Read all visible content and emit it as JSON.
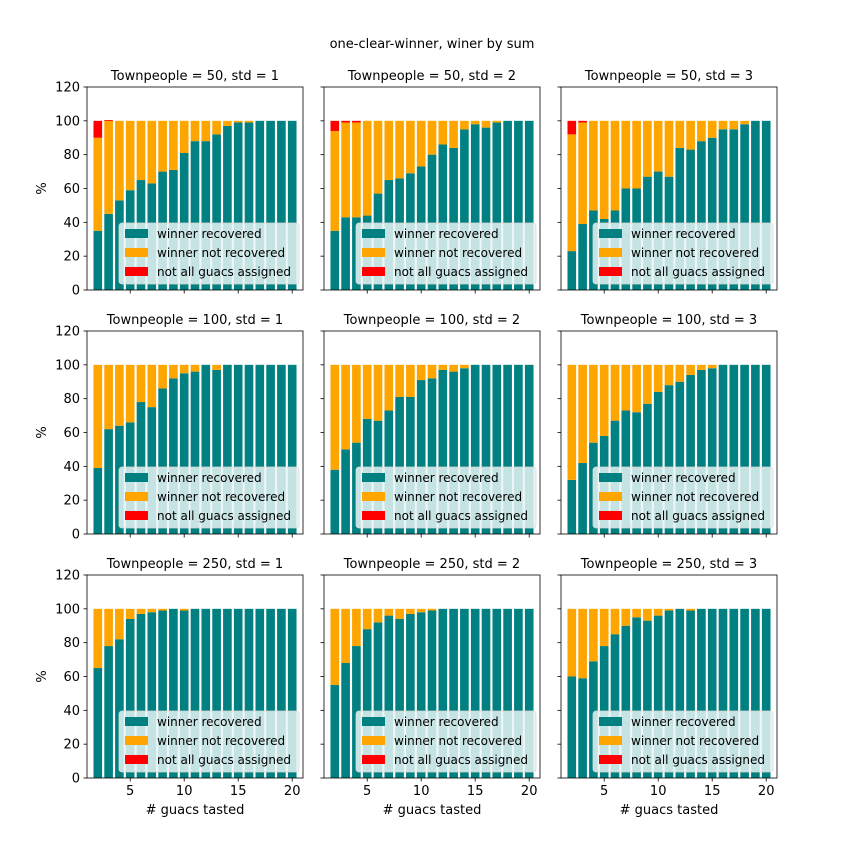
{
  "suptitle": "one-clear-winner, winer by sum",
  "colors": {
    "recovered": "#008080",
    "not_recovered": "#ffa500",
    "unassigned": "#ff0000",
    "legend_bg": "#e8f4f4"
  },
  "legend_labels": [
    "winner recovered",
    "winner not recovered",
    "not all guacs assigned"
  ],
  "chart_data": [
    {
      "type": "bar",
      "stacked": true,
      "title": "Townpeople = 50, std = 1",
      "xlabel": "",
      "ylabel": "%",
      "ylim": [
        0,
        120
      ],
      "xlim": [
        1,
        21
      ],
      "x": [
        2,
        3,
        4,
        5,
        6,
        7,
        8,
        9,
        10,
        11,
        12,
        13,
        14,
        15,
        16,
        17,
        18,
        19,
        20
      ],
      "series": [
        {
          "name": "winner recovered",
          "values": [
            35,
            45,
            53,
            59,
            65,
            63,
            70,
            71,
            81,
            88,
            88,
            92,
            97,
            99,
            99,
            100,
            100,
            100,
            100
          ]
        },
        {
          "name": "winner not recovered",
          "values": [
            55,
            55,
            47,
            41,
            35,
            37,
            30,
            29,
            19,
            12,
            12,
            8,
            3,
            1,
            1,
            0,
            0,
            0,
            0
          ]
        },
        {
          "name": "not all guacs assigned",
          "values": [
            10,
            0.5,
            0,
            0,
            0,
            0,
            0,
            0,
            0,
            0,
            0,
            0,
            0,
            0,
            0,
            0,
            0,
            0,
            0
          ]
        }
      ]
    },
    {
      "type": "bar",
      "stacked": true,
      "title": "Townpeople = 50, std = 2",
      "xlabel": "",
      "ylabel": "",
      "ylim": [
        0,
        120
      ],
      "xlim": [
        1,
        21
      ],
      "x": [
        2,
        3,
        4,
        5,
        6,
        7,
        8,
        9,
        10,
        11,
        12,
        13,
        14,
        15,
        16,
        17,
        18,
        19,
        20
      ],
      "series": [
        {
          "name": "winner recovered",
          "values": [
            35,
            43,
            43,
            44,
            57,
            65,
            66,
            69,
            73,
            80,
            86,
            84,
            95,
            98,
            96,
            99,
            100,
            100,
            100
          ]
        },
        {
          "name": "winner not recovered",
          "values": [
            59,
            56,
            56,
            56,
            43,
            35,
            34,
            31,
            27,
            20,
            14,
            16,
            5,
            2,
            4,
            1,
            0,
            0,
            0
          ]
        },
        {
          "name": "not all guacs assigned",
          "values": [
            6,
            1,
            1,
            0,
            0,
            0,
            0,
            0,
            0,
            0,
            0,
            0,
            0,
            0,
            0,
            0,
            0,
            0,
            0
          ]
        }
      ]
    },
    {
      "type": "bar",
      "stacked": true,
      "title": "Townpeople = 50, std = 3",
      "xlabel": "",
      "ylabel": "",
      "ylim": [
        0,
        120
      ],
      "xlim": [
        1,
        21
      ],
      "x": [
        2,
        3,
        4,
        5,
        6,
        7,
        8,
        9,
        10,
        11,
        12,
        13,
        14,
        15,
        16,
        17,
        18,
        19,
        20
      ],
      "series": [
        {
          "name": "winner recovered",
          "values": [
            23,
            39,
            47,
            42,
            47,
            60,
            60,
            67,
            70,
            67,
            84,
            83,
            88,
            90,
            95,
            95,
            98,
            100,
            100
          ]
        },
        {
          "name": "winner not recovered",
          "values": [
            69,
            60,
            53,
            58,
            53,
            40,
            40,
            33,
            30,
            33,
            16,
            17,
            12,
            10,
            5,
            5,
            2,
            0,
            0
          ]
        },
        {
          "name": "not all guacs assigned",
          "values": [
            8,
            1,
            0,
            0,
            0,
            0,
            0,
            0,
            0,
            0,
            0,
            0,
            0,
            0,
            0,
            0,
            0,
            0,
            0
          ]
        }
      ]
    },
    {
      "type": "bar",
      "stacked": true,
      "title": "Townpeople = 100, std = 1",
      "xlabel": "",
      "ylabel": "%",
      "ylim": [
        0,
        120
      ],
      "xlim": [
        1,
        21
      ],
      "x": [
        2,
        3,
        4,
        5,
        6,
        7,
        8,
        9,
        10,
        11,
        12,
        13,
        14,
        15,
        16,
        17,
        18,
        19,
        20
      ],
      "series": [
        {
          "name": "winner recovered",
          "values": [
            39,
            62,
            64,
            66,
            78,
            75,
            86,
            92,
            95,
            96,
            100,
            97,
            100,
            100,
            100,
            100,
            100,
            100,
            100
          ]
        },
        {
          "name": "winner not recovered",
          "values": [
            61,
            38,
            36,
            34,
            22,
            25,
            14,
            8,
            5,
            4,
            0,
            3,
            0,
            0,
            0,
            0,
            0,
            0,
            0
          ]
        },
        {
          "name": "not all guacs assigned",
          "values": [
            0,
            0,
            0,
            0,
            0,
            0,
            0,
            0,
            0,
            0,
            0,
            0,
            0,
            0,
            0,
            0,
            0,
            0,
            0
          ]
        }
      ]
    },
    {
      "type": "bar",
      "stacked": true,
      "title": "Townpeople = 100, std = 2",
      "xlabel": "",
      "ylabel": "",
      "ylim": [
        0,
        120
      ],
      "xlim": [
        1,
        21
      ],
      "x": [
        2,
        3,
        4,
        5,
        6,
        7,
        8,
        9,
        10,
        11,
        12,
        13,
        14,
        15,
        16,
        17,
        18,
        19,
        20
      ],
      "series": [
        {
          "name": "winner recovered",
          "values": [
            38,
            50,
            54,
            68,
            67,
            73,
            81,
            81,
            91,
            92,
            97,
            96,
            98,
            100,
            100,
            100,
            100,
            100,
            100
          ]
        },
        {
          "name": "winner not recovered",
          "values": [
            62,
            50,
            46,
            32,
            33,
            27,
            19,
            19,
            9,
            8,
            3,
            4,
            2,
            0,
            0,
            0,
            0,
            0,
            0
          ]
        },
        {
          "name": "not all guacs assigned",
          "values": [
            0,
            0,
            0,
            0,
            0,
            0,
            0,
            0,
            0,
            0,
            0,
            0,
            0,
            0,
            0,
            0,
            0,
            0,
            0
          ]
        }
      ]
    },
    {
      "type": "bar",
      "stacked": true,
      "title": "Townpeople = 100, std = 3",
      "xlabel": "",
      "ylabel": "",
      "ylim": [
        0,
        120
      ],
      "xlim": [
        1,
        21
      ],
      "x": [
        2,
        3,
        4,
        5,
        6,
        7,
        8,
        9,
        10,
        11,
        12,
        13,
        14,
        15,
        16,
        17,
        18,
        19,
        20
      ],
      "series": [
        {
          "name": "winner recovered",
          "values": [
            32,
            42,
            54,
            58,
            67,
            73,
            72,
            77,
            84,
            88,
            90,
            94,
            97,
            98,
            100,
            100,
            100,
            100,
            100
          ]
        },
        {
          "name": "winner not recovered",
          "values": [
            68,
            58,
            46,
            42,
            33,
            27,
            28,
            23,
            16,
            12,
            10,
            6,
            3,
            2,
            0,
            0,
            0,
            0,
            0
          ]
        },
        {
          "name": "not all guacs assigned",
          "values": [
            0,
            0,
            0,
            0,
            0,
            0,
            0,
            0,
            0,
            0,
            0,
            0,
            0,
            0,
            0,
            0,
            0,
            0,
            0
          ]
        }
      ]
    },
    {
      "type": "bar",
      "stacked": true,
      "title": "Townpeople = 250, std = 1",
      "xlabel": "# guacs tasted",
      "ylabel": "%",
      "ylim": [
        0,
        120
      ],
      "xlim": [
        1,
        21
      ],
      "x": [
        2,
        3,
        4,
        5,
        6,
        7,
        8,
        9,
        10,
        11,
        12,
        13,
        14,
        15,
        16,
        17,
        18,
        19,
        20
      ],
      "series": [
        {
          "name": "winner recovered",
          "values": [
            65,
            78,
            82,
            94,
            97,
            98,
            99,
            100,
            99,
            100,
            100,
            100,
            100,
            100,
            100,
            100,
            100,
            100,
            100
          ]
        },
        {
          "name": "winner not recovered",
          "values": [
            35,
            22,
            18,
            6,
            3,
            2,
            1,
            0,
            1,
            0,
            0,
            0,
            0,
            0,
            0,
            0,
            0,
            0,
            0
          ]
        },
        {
          "name": "not all guacs assigned",
          "values": [
            0,
            0,
            0,
            0,
            0,
            0,
            0,
            0,
            0,
            0,
            0,
            0,
            0,
            0,
            0,
            0,
            0,
            0,
            0
          ]
        }
      ]
    },
    {
      "type": "bar",
      "stacked": true,
      "title": "Townpeople = 250, std = 2",
      "xlabel": "# guacs tasted",
      "ylabel": "",
      "ylim": [
        0,
        120
      ],
      "xlim": [
        1,
        21
      ],
      "x": [
        2,
        3,
        4,
        5,
        6,
        7,
        8,
        9,
        10,
        11,
        12,
        13,
        14,
        15,
        16,
        17,
        18,
        19,
        20
      ],
      "series": [
        {
          "name": "winner recovered",
          "values": [
            55,
            68,
            78,
            88,
            92,
            96,
            94,
            97,
            98,
            99,
            100,
            100,
            100,
            100,
            100,
            100,
            100,
            100,
            100
          ]
        },
        {
          "name": "winner not recovered",
          "values": [
            45,
            32,
            22,
            12,
            8,
            4,
            6,
            3,
            2,
            1,
            0,
            0,
            0,
            0,
            0,
            0,
            0,
            0,
            0
          ]
        },
        {
          "name": "not all guacs assigned",
          "values": [
            0,
            0,
            0,
            0,
            0,
            0,
            0,
            0,
            0,
            0,
            0,
            0,
            0,
            0,
            0,
            0,
            0,
            0,
            0
          ]
        }
      ]
    },
    {
      "type": "bar",
      "stacked": true,
      "title": "Townpeople = 250, std = 3",
      "xlabel": "# guacs tasted",
      "ylabel": "",
      "ylim": [
        0,
        120
      ],
      "xlim": [
        1,
        21
      ],
      "x": [
        2,
        3,
        4,
        5,
        6,
        7,
        8,
        9,
        10,
        11,
        12,
        13,
        14,
        15,
        16,
        17,
        18,
        19,
        20
      ],
      "series": [
        {
          "name": "winner recovered",
          "values": [
            60,
            59,
            69,
            78,
            85,
            90,
            95,
            93,
            96,
            99,
            100,
            99,
            100,
            100,
            100,
            100,
            100,
            100,
            100
          ]
        },
        {
          "name": "winner not recovered",
          "values": [
            40,
            41,
            31,
            22,
            15,
            10,
            5,
            7,
            4,
            1,
            0,
            1,
            0,
            0,
            0,
            0,
            0,
            0,
            0
          ]
        },
        {
          "name": "not all guacs assigned",
          "values": [
            0,
            0,
            0,
            0,
            0,
            0,
            0,
            0,
            0,
            0,
            0,
            0,
            0,
            0,
            0,
            0,
            0,
            0,
            0
          ]
        }
      ]
    }
  ]
}
